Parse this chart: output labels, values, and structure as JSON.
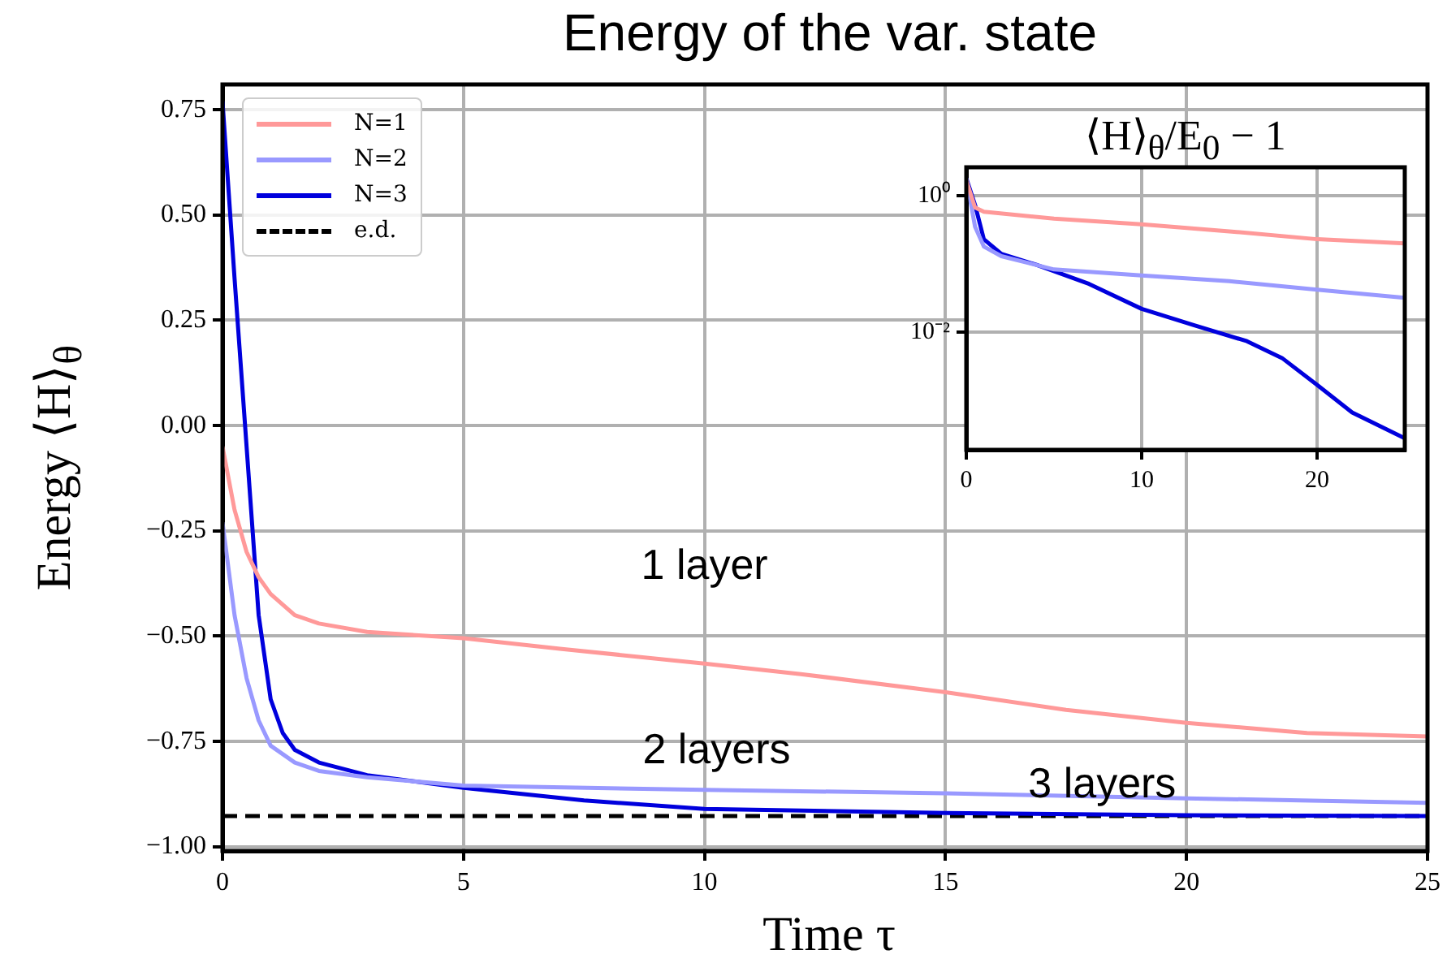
{
  "chart_data": [
    {
      "type": "line",
      "title": "Energy of the var. state",
      "xlabel": "Time τ",
      "ylabel": "Energy ⟨H⟩$_{θ}$",
      "xlim": [
        0,
        25
      ],
      "ylim": [
        -1.01,
        0.81
      ],
      "xticks": [
        0,
        5,
        10,
        15,
        20,
        25
      ],
      "yticks": [
        {
          "value": -1,
          "label": "−1.00"
        },
        {
          "value": -0.75,
          "label": "−0.75"
        },
        {
          "value": -0.5,
          "label": "−0.50"
        },
        {
          "value": -0.25,
          "label": "−0.25"
        },
        {
          "value": 0,
          "label": "0.00"
        },
        {
          "value": 0.25,
          "label": "0.25"
        },
        {
          "value": 0.5,
          "label": "0.50"
        },
        {
          "value": 0.75,
          "label": "0.75"
        }
      ],
      "grid": true,
      "legend": "top left",
      "marker": "none",
      "series": [
        {
          "name": "N=1",
          "color": "#ff9999",
          "x": [
            0,
            0.25,
            0.5,
            0.75,
            1,
            1.5,
            2,
            3,
            5,
            7,
            10,
            12,
            15,
            17.5,
            20,
            22.5,
            25
          ],
          "values": [
            -0.05,
            -0.2,
            -0.3,
            -0.36,
            -0.4,
            -0.45,
            -0.47,
            -0.49,
            -0.505,
            -0.53,
            -0.565,
            -0.59,
            -0.633,
            -0.675,
            -0.706,
            -0.73,
            -0.738
          ]
        },
        {
          "name": "N=2",
          "color": "#9999ff",
          "x": [
            0,
            0.25,
            0.5,
            0.75,
            1,
            1.5,
            2,
            3,
            5,
            10,
            15,
            20,
            25
          ],
          "values": [
            -0.23,
            -0.45,
            -0.6,
            -0.7,
            -0.76,
            -0.8,
            -0.82,
            -0.835,
            -0.855,
            -0.865,
            -0.873,
            -0.885,
            -0.896
          ]
        },
        {
          "name": "N=3",
          "color": "#0000dd",
          "x": [
            0,
            0.25,
            0.5,
            0.75,
            1,
            1.25,
            1.5,
            2,
            3,
            5,
            7.5,
            10,
            15,
            20,
            25
          ],
          "values": [
            0.77,
            0.35,
            -0.05,
            -0.45,
            -0.65,
            -0.73,
            -0.77,
            -0.8,
            -0.83,
            -0.86,
            -0.89,
            -0.91,
            -0.92,
            -0.925,
            -0.927
          ]
        },
        {
          "name": "e.d.",
          "color": "#000000",
          "line_style": "dashed",
          "x": [
            0,
            25
          ],
          "values": [
            -0.927,
            -0.927
          ]
        }
      ],
      "annotations": [
        "1 layer",
        "2 layers",
        "3 layers"
      ]
    },
    {
      "type": "line",
      "title": "⟨H⟩$_{θ}$/E$_{0}$ − 1",
      "log": "y",
      "xlim": [
        0,
        25
      ],
      "ylim": [
        0.00019,
        2.6
      ],
      "xticks": [
        0,
        10,
        20
      ],
      "yticks": [
        {
          "value": 0.01,
          "label": "10⁻²"
        },
        {
          "value": 1,
          "label": "10⁰"
        }
      ],
      "grid": true,
      "marker": "none",
      "series": [
        {
          "color": "#ff9999",
          "x": [
            0,
            0.5,
            1,
            5,
            10,
            15,
            20,
            25
          ],
          "values": [
            1.67,
            0.67,
            0.58,
            0.46,
            0.38,
            0.3,
            0.23,
            0.2
          ]
        },
        {
          "color": "#9999ff",
          "x": [
            0,
            0.5,
            1,
            2,
            5,
            10,
            15,
            20,
            25
          ],
          "values": [
            1.8,
            0.35,
            0.18,
            0.13,
            0.083,
            0.068,
            0.056,
            0.042,
            0.032
          ]
        },
        {
          "color": "#0000dd",
          "x": [
            0,
            0.5,
            1,
            2,
            4,
            7,
            10,
            13,
            16,
            18,
            20,
            22,
            25
          ],
          "values": [
            1.8,
            0.73,
            0.23,
            0.14,
            0.097,
            0.051,
            0.022,
            0.0126,
            0.0074,
            0.0042,
            0.0017,
            0.00067,
            0.00028
          ]
        }
      ]
    }
  ]
}
